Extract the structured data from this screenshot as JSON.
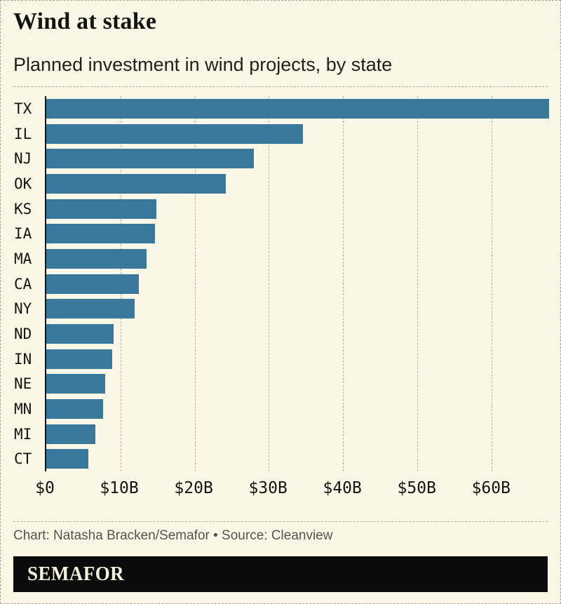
{
  "header": {
    "title": "Wind at stake",
    "subtitle": "Planned investment in wind projects, by state"
  },
  "footer": {
    "credit": "Chart: Natasha Bracken/Semafor • Source: Cleanview",
    "logo": "SEMAFOR"
  },
  "colors": {
    "background": "#FAF7E6",
    "bar": "#38799B",
    "axis_line": "#15150F",
    "gridline": "#B9B3A0",
    "text": "#15150F",
    "credit_text": "#55544A",
    "logo_background": "#0B0B0B",
    "logo_text": "#F6F2E0"
  },
  "chart_data": {
    "type": "bar",
    "orientation": "horizontal",
    "title": "Wind at stake",
    "subtitle": "Planned investment in wind projects, by state",
    "unit": "USD billions",
    "categories": [
      "TX",
      "IL",
      "NJ",
      "OK",
      "KS",
      "IA",
      "MA",
      "CA",
      "NY",
      "ND",
      "IN",
      "NE",
      "MN",
      "MI",
      "CT"
    ],
    "values": [
      67.8,
      34.6,
      28.0,
      24.2,
      14.8,
      14.7,
      13.5,
      12.5,
      11.9,
      9.1,
      8.9,
      7.9,
      7.7,
      6.6,
      5.7
    ],
    "xlim": [
      0,
      67.8
    ],
    "x_ticks": [
      {
        "label": "$0",
        "value": 0
      },
      {
        "label": "$10B",
        "value": 10
      },
      {
        "label": "$20B",
        "value": 20
      },
      {
        "label": "$30B",
        "value": 30
      },
      {
        "label": "$40B",
        "value": 40
      },
      {
        "label": "$50B",
        "value": 50
      },
      {
        "label": "$60B",
        "value": 60
      }
    ],
    "grid": "vertical-dashed",
    "legend": "none"
  }
}
